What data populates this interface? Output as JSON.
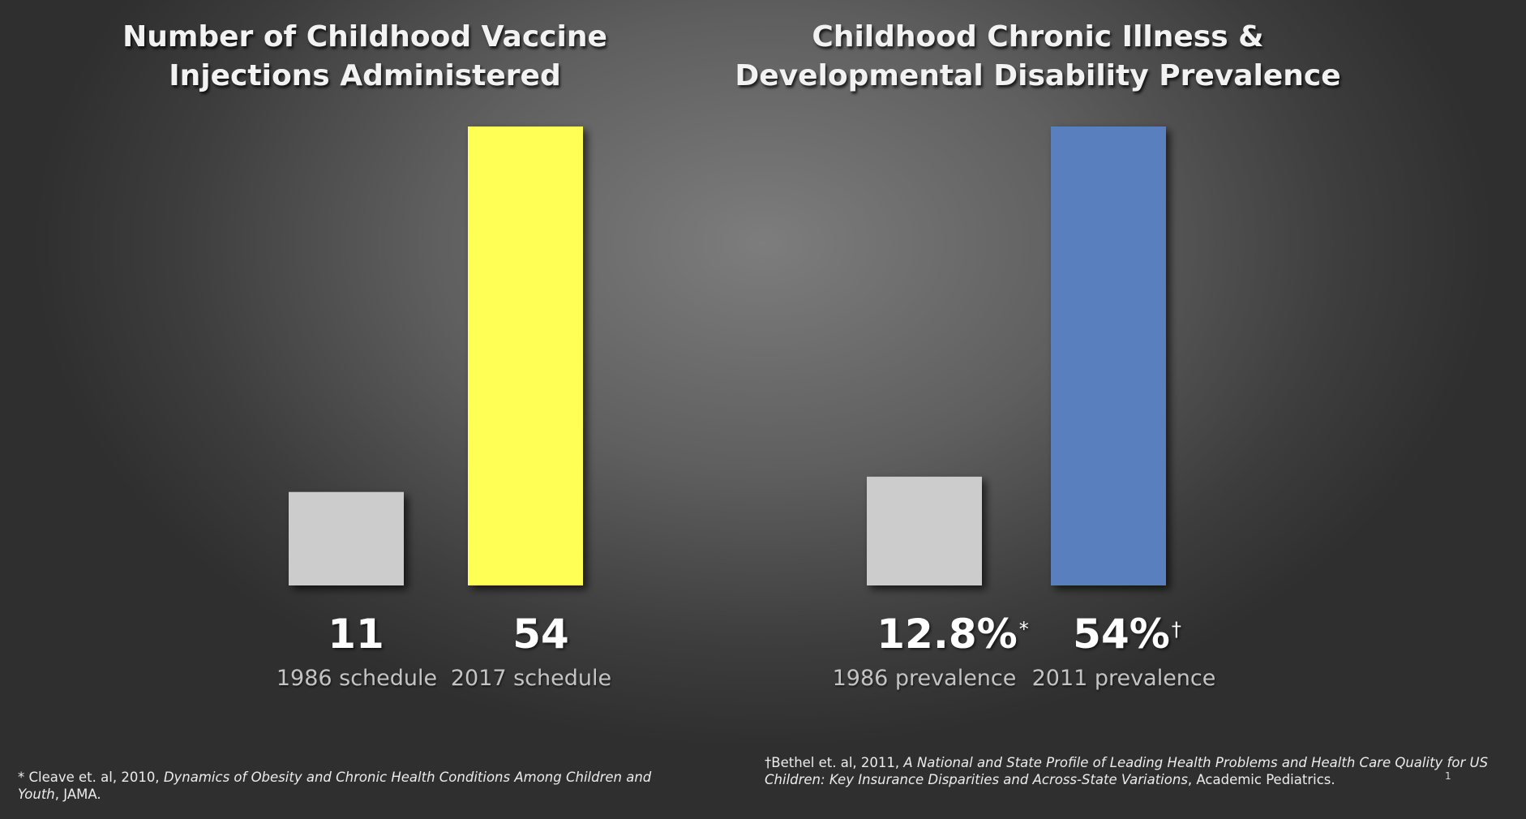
{
  "chart_data": [
    {
      "type": "bar",
      "title": [
        "Number of Childhood Vaccine",
        "Injections Administered"
      ],
      "categories": [
        "1986 schedule",
        "2017 schedule"
      ],
      "values": [
        11,
        54
      ],
      "value_labels": [
        "11",
        "54"
      ],
      "value_markers": [
        "",
        ""
      ],
      "bar_colors": [
        "#cccccc",
        "#ffff55"
      ],
      "ylim": [
        0,
        54
      ],
      "grid": false,
      "legend": "none"
    },
    {
      "type": "bar",
      "title": [
        "Childhood Chronic Illness &",
        "Developmental Disability Prevalence"
      ],
      "categories": [
        "1986 prevalence",
        "2011 prevalence"
      ],
      "values": [
        12.8,
        54
      ],
      "value_labels": [
        "12.8%",
        "54%"
      ],
      "value_markers": [
        "*",
        "†"
      ],
      "bar_colors": [
        "#cccccc",
        "#5a7fbe"
      ],
      "ylim": [
        0,
        54
      ],
      "grid": false,
      "legend": "none"
    }
  ],
  "footnotes": {
    "left": {
      "prefix": "* Cleave et. al, 2010, ",
      "italic": "Dynamics of Obesity and Chronic Health Conditions Among Children and Youth",
      "suffix": ", JAMA."
    },
    "right": {
      "prefix": "†Bethel et. al, 2011, ",
      "italic": "A National and State Profile of Leading Health Problems and Health Care Quality for US Children: Key Insurance Disparities and Across-State Variations",
      "suffix": ", Academic Pediatrics."
    }
  },
  "slide_number": "1"
}
